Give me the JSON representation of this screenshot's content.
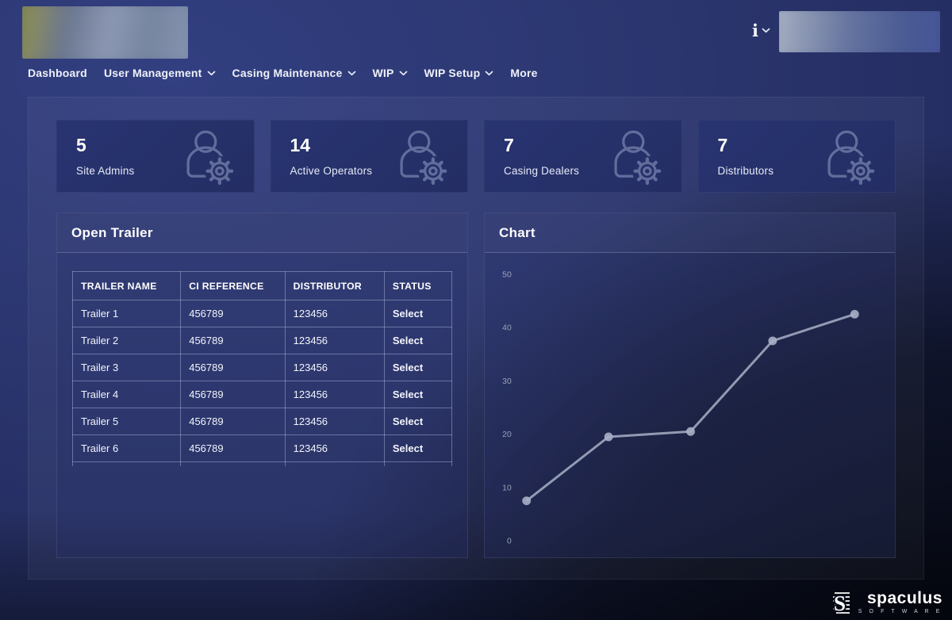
{
  "theme": {
    "page_bg": "#2b366f",
    "card_bg": "#26316b",
    "chart_line_color": "#a7b0c6",
    "text_color": "#ffffff"
  },
  "header": {
    "info_icon_glyph": "i",
    "nav": [
      {
        "label": "Dashboard",
        "has_chevron": false
      },
      {
        "label": "User Management",
        "has_chevron": true
      },
      {
        "label": "Casing Maintenance",
        "has_chevron": true
      },
      {
        "label": "WIP",
        "has_chevron": true
      },
      {
        "label": "WIP Setup",
        "has_chevron": true
      },
      {
        "label": "More",
        "has_chevron": false
      }
    ]
  },
  "stats": [
    {
      "value": "5",
      "label": "Site Admins",
      "icon": "user-gear-icon"
    },
    {
      "value": "14",
      "label": "Active Operators",
      "icon": "user-gear-icon"
    },
    {
      "value": "7",
      "label": "Casing Dealers",
      "icon": "user-gear-icon"
    },
    {
      "value": "7",
      "label": "Distributors",
      "icon": "user-gear-icon"
    }
  ],
  "open_trailer": {
    "title": "Open Trailer",
    "columns": [
      "TRAILER NAME",
      "CI REFERENCE",
      "DISTRIBUTOR",
      "STATUS"
    ],
    "rows": [
      {
        "trailer_name": "Trailer 1",
        "ci_reference": "456789",
        "distributor": "123456",
        "status": "Select"
      },
      {
        "trailer_name": "Trailer 2",
        "ci_reference": "456789",
        "distributor": "123456",
        "status": "Select"
      },
      {
        "trailer_name": "Trailer 3",
        "ci_reference": "456789",
        "distributor": "123456",
        "status": "Select"
      },
      {
        "trailer_name": "Trailer 4",
        "ci_reference": "456789",
        "distributor": "123456",
        "status": "Select"
      },
      {
        "trailer_name": "Trailer 5",
        "ci_reference": "456789",
        "distributor": "123456",
        "status": "Select"
      },
      {
        "trailer_name": "Trailer 6",
        "ci_reference": "456789",
        "distributor": "123456",
        "status": "Select"
      }
    ]
  },
  "chart_panel": {
    "title": "Chart"
  },
  "chart_data": {
    "type": "line",
    "values": [
      7.5,
      19.5,
      20.5,
      37.5,
      42.5
    ],
    "yticks": [
      0,
      10,
      20,
      30,
      40,
      50
    ],
    "ylim": [
      0,
      50
    ],
    "x_labels_visible": false,
    "grid": false,
    "line_color": "#a7b0c6",
    "dot_color": "#a7b0c6",
    "tick_label_color": "#98a1bb"
  },
  "footer": {
    "brand": "spaculus",
    "brand_sub": "S O F T W A R E"
  }
}
